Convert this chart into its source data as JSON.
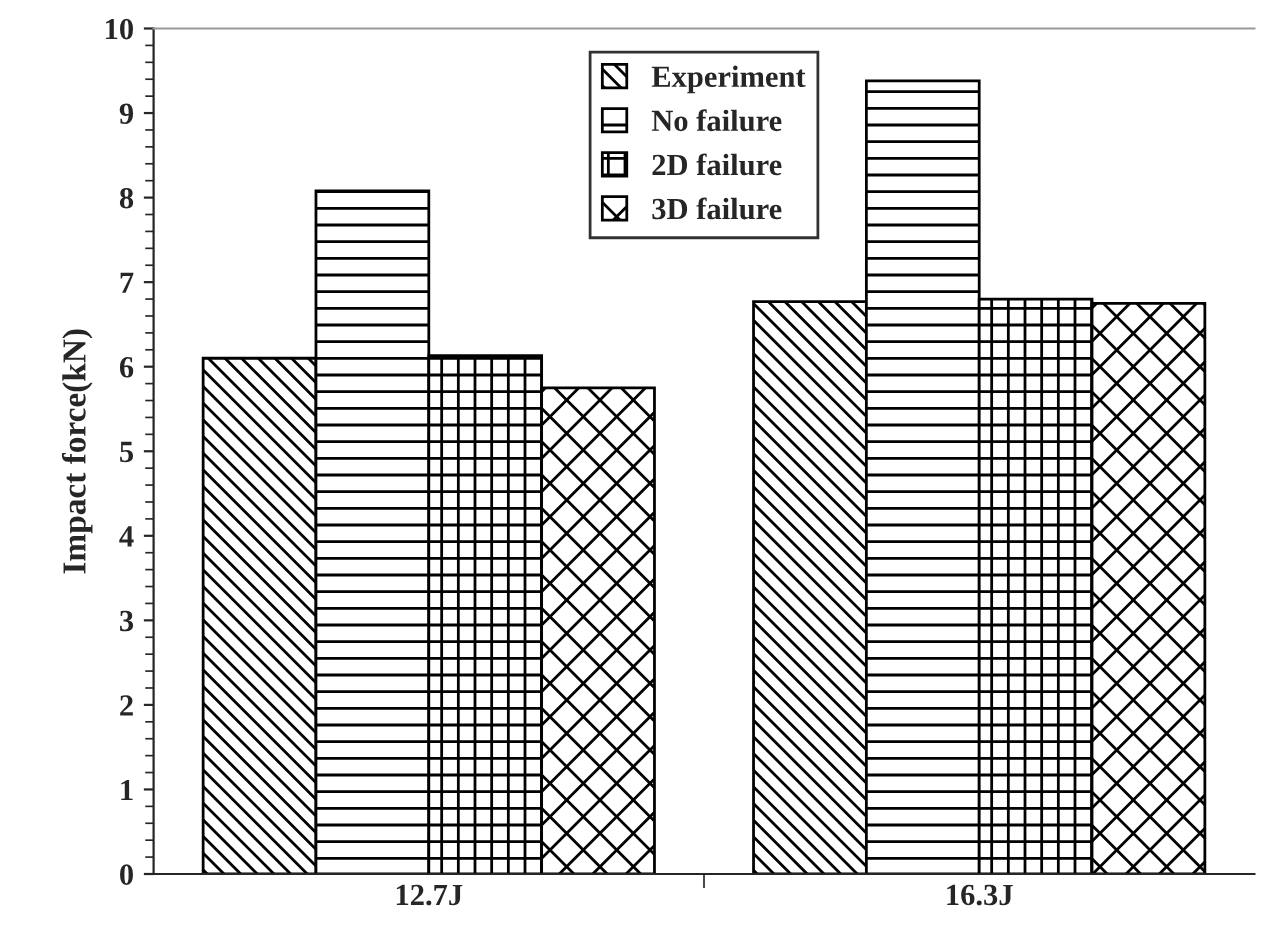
{
  "chart_data": {
    "type": "bar",
    "ylabel": "Impact force(kN)",
    "categories": [
      "12.7J",
      "16.3J"
    ],
    "series": [
      {
        "name": "Experiment",
        "color": "#000000",
        "values": [
          6.1,
          6.77
        ]
      },
      {
        "name": "No failure",
        "color": "#000000",
        "values": [
          8.08,
          9.38
        ]
      },
      {
        "name": "2D failure",
        "color": "#000000",
        "values": [
          6.13,
          6.8
        ]
      },
      {
        "name": "3D failure",
        "color": "#000000",
        "values": [
          5.75,
          6.75
        ]
      }
    ],
    "ylim": [
      0,
      10
    ],
    "yticks": [
      0,
      1,
      2,
      3,
      4,
      5,
      6,
      7,
      8,
      9,
      10
    ],
    "grid": false,
    "legend": "top"
  }
}
